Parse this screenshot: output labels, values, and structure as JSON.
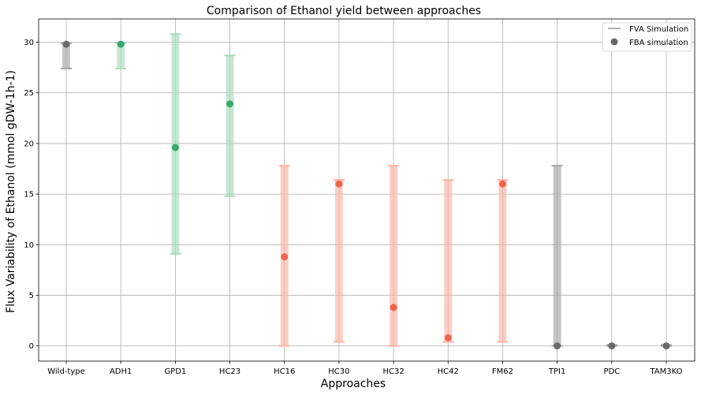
{
  "chart_data": {
    "type": "errorbar-scatter",
    "title": "Comparison of Ethanol yield between approaches",
    "xlabel": "Approaches",
    "ylabel": "Flux Variability of Ethanol (mmol gDW-1h-1)",
    "ylim": [
      -1.5,
      32.3
    ],
    "yticks": [
      0,
      5,
      10,
      15,
      20,
      25,
      30
    ],
    "grid": true,
    "legend": {
      "placement": "top-right",
      "entries": [
        {
          "label": "FVA Simulation",
          "marker": "line",
          "color": "#999999"
        },
        {
          "label": "FBA simulation",
          "marker": "dot",
          "color": "#666666"
        }
      ]
    },
    "colors": {
      "gray_bar": "#a6a6a6",
      "gray_dot": "#6b6b6b",
      "green_bar": "#a8dcbf",
      "green_dot": "#3aa76d",
      "red_bar": "#fbb4a5",
      "red_dot": "#f0644a"
    },
    "points": [
      {
        "label": "Wild-type",
        "min": 27.4,
        "max": 29.9,
        "fba": 29.8,
        "group": "gray"
      },
      {
        "label": "ADH1",
        "min": 27.4,
        "max": 29.9,
        "fba": 29.8,
        "group": "green"
      },
      {
        "label": "GPD1",
        "min": 9.1,
        "max": 30.8,
        "fba": 19.6,
        "group": "green"
      },
      {
        "label": "HC23",
        "min": 14.8,
        "max": 28.7,
        "fba": 23.9,
        "group": "green"
      },
      {
        "label": "HC16",
        "min": 0.0,
        "max": 17.8,
        "fba": 8.8,
        "group": "red"
      },
      {
        "label": "HC30",
        "min": 0.4,
        "max": 16.4,
        "fba": 16.0,
        "group": "red"
      },
      {
        "label": "HC32",
        "min": 0.0,
        "max": 17.8,
        "fba": 3.8,
        "group": "red"
      },
      {
        "label": "HC42",
        "min": 0.4,
        "max": 16.4,
        "fba": 0.8,
        "group": "red"
      },
      {
        "label": "FM62",
        "min": 0.4,
        "max": 16.4,
        "fba": 16.0,
        "group": "red"
      },
      {
        "label": "TPI1",
        "min": 0.0,
        "max": 17.8,
        "fba": 0.0,
        "group": "gray"
      },
      {
        "label": "PDC",
        "min": 0.0,
        "max": 0.1,
        "fba": 0.0,
        "group": "gray"
      },
      {
        "label": "TAM3KO",
        "min": 0.0,
        "max": 0.1,
        "fba": 0.0,
        "group": "gray"
      }
    ]
  }
}
